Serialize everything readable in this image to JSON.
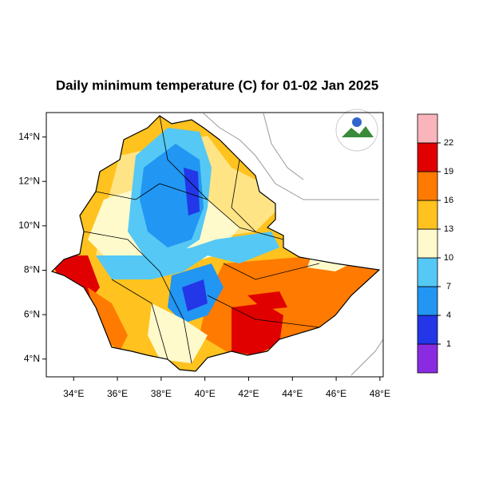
{
  "title": "Daily minimum temperature (C) for 01-02 Jan 2025",
  "map": {
    "xlim": [
      32.75,
      48.15
    ],
    "ylim": [
      3.2,
      15.1
    ],
    "xticks": [
      {
        "value": 34,
        "label": "34°E"
      },
      {
        "value": 36,
        "label": "36°E"
      },
      {
        "value": 38,
        "label": "38°E"
      },
      {
        "value": 40,
        "label": "40°E"
      },
      {
        "value": 42,
        "label": "42°E"
      },
      {
        "value": 44,
        "label": "44°E"
      },
      {
        "value": 46,
        "label": "46°E"
      },
      {
        "value": 48,
        "label": "48°E"
      }
    ],
    "yticks": [
      {
        "value": 4,
        "label": "4°N"
      },
      {
        "value": 6,
        "label": "6°N"
      },
      {
        "value": 8,
        "label": "8°N"
      },
      {
        "value": 10,
        "label": "10°N"
      },
      {
        "value": 12,
        "label": "12°N"
      },
      {
        "value": 14,
        "label": "14°N"
      }
    ]
  },
  "colorbar": {
    "levels": [
      1,
      4,
      7,
      10,
      13,
      16,
      19,
      22
    ],
    "colors": [
      "#8a2be2",
      "#2336e8",
      "#2196f3",
      "#55c8f5",
      "#fffacc",
      "#ffc21e",
      "#ff7a00",
      "#e00000",
      "#f9b4bc"
    ]
  }
}
